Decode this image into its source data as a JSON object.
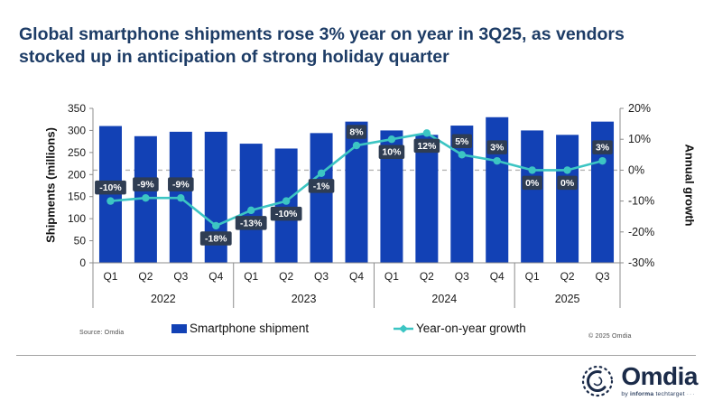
{
  "title": "Global smartphone shipments rose 3% year on year in 3Q25, as vendors stocked up in anticipation of strong holiday quarter",
  "source_note": "Source: Omdia",
  "copyright_note": "© 2025 Omdia",
  "logo": {
    "name": "Omdia",
    "tagline_by": "by",
    "tagline_brand": "informa",
    "tagline_rest": "techtarget",
    "tagline_dots": "···"
  },
  "colors": {
    "bar": "#1241b5",
    "line": "#3cc5c3",
    "label_bg": "#2f3d53",
    "label_text": "#ffffff",
    "axis": "#8c8c8c",
    "dashed_gridline": "#b5b5b5",
    "tick_text": "#1a1a1a",
    "title_text": "#1d3c66"
  },
  "chart_data": {
    "type": "bar+line",
    "categories": [
      "Q1",
      "Q2",
      "Q3",
      "Q4",
      "Q1",
      "Q2",
      "Q3",
      "Q4",
      "Q1",
      "Q2",
      "Q3",
      "Q4",
      "Q1",
      "Q2",
      "Q3"
    ],
    "year_groups": [
      {
        "label": "2022",
        "span": 4
      },
      {
        "label": "2023",
        "span": 4
      },
      {
        "label": "2024",
        "span": 4
      },
      {
        "label": "2025",
        "span": 3
      }
    ],
    "series": [
      {
        "name": "Smartphone shipment",
        "type": "bar",
        "axis": "left",
        "values": [
          310,
          287,
          297,
          297,
          270,
          259,
          294,
          320,
          300,
          290,
          311,
          330,
          300,
          290,
          320
        ]
      },
      {
        "name": "Year-on-year growth",
        "type": "line",
        "axis": "right",
        "values": [
          -10,
          -9,
          -9,
          -18,
          -13,
          -10,
          -1,
          8,
          10,
          12,
          5,
          3,
          0,
          0,
          3
        ],
        "labels": [
          "-10%",
          "-9%",
          "-9%",
          "-18%",
          "-13%",
          "-10%",
          "-1%",
          "8%",
          "10%",
          "12%",
          "5%",
          "3%",
          "0%",
          "0%",
          "3%"
        ],
        "label_positions": [
          "above",
          "above",
          "above",
          "below",
          "below",
          "below",
          "below",
          "above",
          "below",
          "below",
          "above",
          "above",
          "below",
          "below",
          "above"
        ]
      }
    ],
    "left_axis": {
      "title": "Shipments (millions)",
      "min": 0,
      "max": 350,
      "step": 50,
      "ticks": [
        "350",
        "300",
        "250",
        "200",
        "150",
        "100",
        "50",
        "0"
      ]
    },
    "right_axis": {
      "title": "Annual growth",
      "min": -30,
      "max": 20,
      "step": 10,
      "ticks": [
        "20%",
        "10%",
        "0%",
        "-10%",
        "-20%",
        "-30%"
      ]
    },
    "gridline": {
      "right_axis_value": 0,
      "style": "dashed"
    },
    "legend": [
      {
        "label": "Smartphone shipment",
        "marker": "square"
      },
      {
        "label": "Year-on-year growth",
        "marker": "line-diamond"
      }
    ],
    "legend_position": "bottom"
  }
}
